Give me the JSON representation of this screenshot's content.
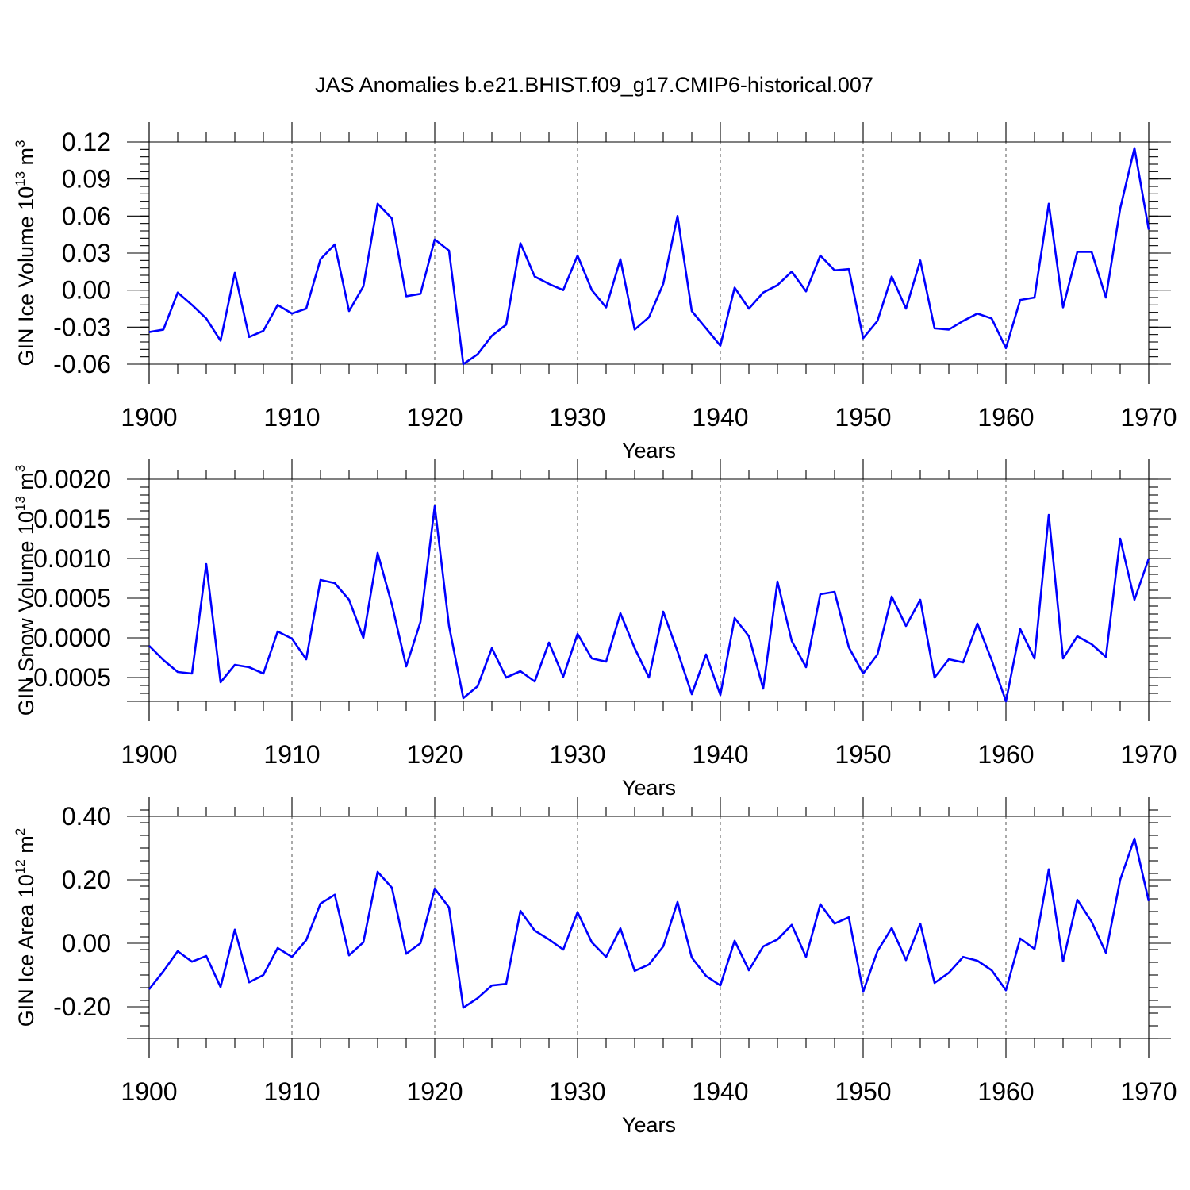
{
  "title": "JAS Anomalies b.e21.BHIST.f09_g17.CMIP6-historical.007",
  "colors": {
    "line": "#0000ff",
    "axis": "#000000",
    "grid": "#555555"
  },
  "chart_data": [
    {
      "type": "line",
      "ylabel": "GIN Ice Volume 10",
      "ylabel_sup": "13",
      "ylabel_unit": " m",
      "ylabel_unit_sup": "3",
      "xlabel": "Years",
      "xlim": [
        1900,
        1970
      ],
      "ylim": [
        -0.06,
        0.12
      ],
      "yticks": [
        -0.06,
        -0.03,
        0.0,
        0.03,
        0.06,
        0.09,
        0.12
      ],
      "ytick_labels": [
        "-0.06",
        "-0.03",
        "0.00",
        "0.03",
        "0.06",
        "0.09",
        "0.12"
      ],
      "ytick_minor_step": 0.006,
      "xticks": [
        1900,
        1910,
        1920,
        1930,
        1940,
        1950,
        1960,
        1970
      ],
      "xtick_labels": [
        "1900",
        "1910",
        "1920",
        "1930",
        "1940",
        "1950",
        "1960",
        "1970"
      ],
      "grid": "x-dashed",
      "series": [
        {
          "name": "GIN Ice Volume",
          "x": [
            1900,
            1901,
            1902,
            1903,
            1904,
            1905,
            1906,
            1907,
            1908,
            1909,
            1910,
            1911,
            1912,
            1913,
            1914,
            1915,
            1916,
            1917,
            1918,
            1919,
            1920,
            1921,
            1922,
            1923,
            1924,
            1925,
            1926,
            1927,
            1928,
            1929,
            1930,
            1931,
            1932,
            1933,
            1934,
            1935,
            1936,
            1937,
            1938,
            1939,
            1940,
            1941,
            1942,
            1943,
            1944,
            1945,
            1946,
            1947,
            1948,
            1949,
            1950,
            1951,
            1952,
            1953,
            1954,
            1955,
            1956,
            1957,
            1958,
            1959,
            1960,
            1961,
            1962,
            1963,
            1964,
            1965,
            1966,
            1967,
            1968,
            1969,
            1970
          ],
          "values": [
            -0.034,
            -0.032,
            -0.002,
            -0.012,
            -0.023,
            -0.041,
            0.014,
            -0.038,
            -0.033,
            -0.012,
            -0.019,
            -0.015,
            0.025,
            0.037,
            -0.017,
            0.003,
            0.07,
            0.058,
            -0.005,
            -0.003,
            0.041,
            0.032,
            -0.06,
            -0.052,
            -0.037,
            -0.028,
            0.038,
            0.011,
            0.005,
            0.0,
            0.028,
            0.0,
            -0.014,
            0.025,
            -0.032,
            -0.022,
            0.005,
            0.06,
            -0.017,
            -0.031,
            -0.045,
            0.002,
            -0.015,
            -0.002,
            0.004,
            0.015,
            -0.001,
            0.028,
            0.016,
            0.017,
            -0.039,
            -0.025,
            0.011,
            -0.015,
            0.024,
            -0.031,
            -0.032,
            -0.025,
            -0.019,
            -0.023,
            -0.047,
            -0.008,
            -0.006,
            0.07,
            -0.014,
            0.031,
            0.031,
            -0.006,
            0.066,
            0.115,
            0.049
          ]
        }
      ]
    },
    {
      "type": "line",
      "ylabel": "GIN Snow Volume 10",
      "ylabel_sup": "13",
      "ylabel_unit": " m",
      "ylabel_unit_sup": "3",
      "xlabel": "Years",
      "xlim": [
        1900,
        1970
      ],
      "ylim": [
        -0.0008,
        0.002
      ],
      "yticks": [
        -0.0005,
        0.0,
        0.0005,
        0.001,
        0.0015,
        0.002
      ],
      "ytick_labels": [
        "-0.0005",
        "0.0000",
        "0.0005",
        "0.0010",
        "0.0015",
        "0.0020"
      ],
      "ytick_minor_step": 0.0001,
      "xticks": [
        1900,
        1910,
        1920,
        1930,
        1940,
        1950,
        1960,
        1970
      ],
      "xtick_labels": [
        "1900",
        "1910",
        "1920",
        "1930",
        "1940",
        "1950",
        "1960",
        "1970"
      ],
      "grid": "x-dashed",
      "series": [
        {
          "name": "GIN Snow Volume",
          "x": [
            1900,
            1901,
            1902,
            1903,
            1904,
            1905,
            1906,
            1907,
            1908,
            1909,
            1910,
            1911,
            1912,
            1913,
            1914,
            1915,
            1916,
            1917,
            1918,
            1919,
            1920,
            1921,
            1922,
            1923,
            1924,
            1925,
            1926,
            1927,
            1928,
            1929,
            1930,
            1931,
            1932,
            1933,
            1934,
            1935,
            1936,
            1937,
            1938,
            1939,
            1940,
            1941,
            1942,
            1943,
            1944,
            1945,
            1946,
            1947,
            1948,
            1949,
            1950,
            1951,
            1952,
            1953,
            1954,
            1955,
            1956,
            1957,
            1958,
            1959,
            1960,
            1961,
            1962,
            1963,
            1964,
            1965,
            1966,
            1967,
            1968,
            1969,
            1970
          ],
          "values": [
            -0.0001,
            -0.00028,
            -0.00043,
            -0.00045,
            0.00093,
            -0.00056,
            -0.00034,
            -0.00037,
            -0.00045,
            8e-05,
            -1e-05,
            -0.00027,
            0.00073,
            0.00069,
            0.00048,
            0.0,
            0.00107,
            0.00042,
            -0.00036,
            0.0002,
            0.00166,
            0.00015,
            -0.00076,
            -0.00061,
            -0.00013,
            -0.0005,
            -0.00042,
            -0.00055,
            -6e-05,
            -0.00049,
            5e-05,
            -0.00026,
            -0.0003,
            0.00031,
            -0.00013,
            -0.0005,
            0.00033,
            -0.00017,
            -0.00071,
            -0.00021,
            -0.00072,
            0.00025,
            2e-05,
            -0.00064,
            0.00071,
            -4e-05,
            -0.00037,
            0.00055,
            0.00058,
            -0.00012,
            -0.00045,
            -0.00021,
            0.00052,
            0.00015,
            0.00048,
            -0.0005,
            -0.00027,
            -0.00031,
            0.00018,
            -0.00028,
            -0.0008,
            0.00011,
            -0.00026,
            0.00155,
            -0.00026,
            2e-05,
            -8e-05,
            -0.00024,
            0.00125,
            0.00048,
            0.001
          ]
        }
      ]
    },
    {
      "type": "line",
      "ylabel": "GIN Ice Area 10",
      "ylabel_sup": "12",
      "ylabel_unit": " m",
      "ylabel_unit_sup": "2",
      "xlabel": "Years",
      "xlim": [
        1900,
        1970
      ],
      "ylim": [
        -0.3,
        0.4
      ],
      "yticks": [
        -0.2,
        0.0,
        0.2,
        0.4
      ],
      "ytick_labels": [
        "-0.20",
        "0.00",
        "0.20",
        "0.40"
      ],
      "ytick_minor_step": 0.04,
      "xticks": [
        1900,
        1910,
        1920,
        1930,
        1940,
        1950,
        1960,
        1970
      ],
      "xtick_labels": [
        "1900",
        "1910",
        "1920",
        "1930",
        "1940",
        "1950",
        "1960",
        "1970"
      ],
      "grid": "x-dashed",
      "series": [
        {
          "name": "GIN Ice Area",
          "x": [
            1900,
            1901,
            1902,
            1903,
            1904,
            1905,
            1906,
            1907,
            1908,
            1909,
            1910,
            1911,
            1912,
            1913,
            1914,
            1915,
            1916,
            1917,
            1918,
            1919,
            1920,
            1921,
            1922,
            1923,
            1924,
            1925,
            1926,
            1927,
            1928,
            1929,
            1930,
            1931,
            1932,
            1933,
            1934,
            1935,
            1936,
            1937,
            1938,
            1939,
            1940,
            1941,
            1942,
            1943,
            1944,
            1945,
            1946,
            1947,
            1948,
            1949,
            1950,
            1951,
            1952,
            1953,
            1954,
            1955,
            1956,
            1957,
            1958,
            1959,
            1960,
            1961,
            1962,
            1963,
            1964,
            1965,
            1966,
            1967,
            1968,
            1969,
            1970
          ],
          "values": [
            -0.145,
            -0.088,
            -0.025,
            -0.058,
            -0.04,
            -0.138,
            0.043,
            -0.123,
            -0.1,
            -0.015,
            -0.043,
            0.01,
            0.125,
            0.153,
            -0.038,
            0.003,
            0.225,
            0.175,
            -0.033,
            0.0,
            0.172,
            0.113,
            -0.203,
            -0.173,
            -0.133,
            -0.128,
            0.102,
            0.04,
            0.012,
            -0.02,
            0.098,
            0.003,
            -0.043,
            0.047,
            -0.087,
            -0.067,
            -0.01,
            0.13,
            -0.045,
            -0.103,
            -0.133,
            0.008,
            -0.085,
            -0.01,
            0.012,
            0.058,
            -0.043,
            0.123,
            0.062,
            0.082,
            -0.153,
            -0.025,
            0.048,
            -0.053,
            0.062,
            -0.125,
            -0.093,
            -0.043,
            -0.055,
            -0.085,
            -0.148,
            0.015,
            -0.018,
            0.233,
            -0.057,
            0.137,
            0.068,
            -0.03,
            0.2,
            0.33,
            0.133
          ]
        }
      ]
    }
  ]
}
